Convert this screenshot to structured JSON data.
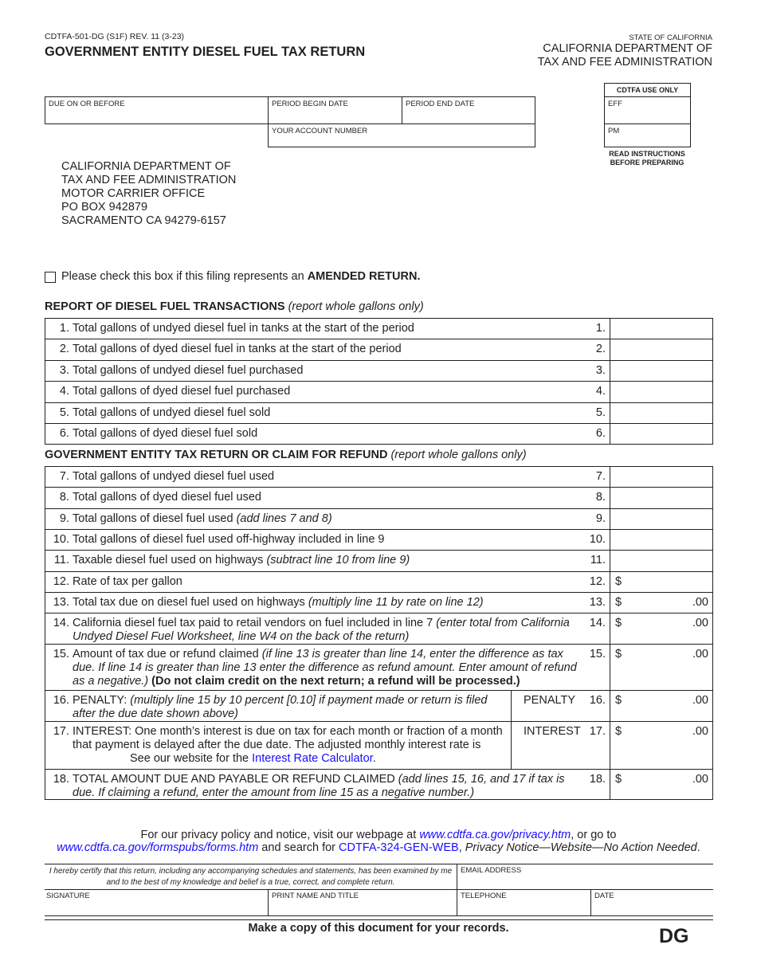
{
  "header": {
    "form_number": "CDTFA-501-DG (S1F) REV. 11 (3-23)",
    "title": "GOVERNMENT ENTITY DIESEL FUEL TAX RETURN",
    "state": "STATE OF CALIFORNIA",
    "dept_line1": "CALIFORNIA DEPARTMENT OF",
    "dept_line2": "TAX AND FEE ADMINISTRATION"
  },
  "fields": {
    "due_on_or_before": "DUE ON OR BEFORE",
    "period_begin": "PERIOD BEGIN DATE",
    "period_end": "PERIOD END DATE",
    "account_number": "YOUR ACCOUNT NUMBER"
  },
  "cdtfa_use": {
    "title": "CDTFA USE ONLY",
    "eff": "EFF",
    "pm": "PM",
    "read1": "READ INSTRUCTIONS",
    "read2": "BEFORE PREPARING"
  },
  "address": [
    "CALIFORNIA DEPARTMENT OF",
    "TAX AND FEE ADMINISTRATION",
    "MOTOR CARRIER OFFICE",
    "PO BOX 942879",
    "SACRAMENTO CA 94279-6157"
  ],
  "amended": {
    "text": "Please check this box if this filing represents an ",
    "bold": "AMENDED RETURN.",
    "checked": false
  },
  "section1": {
    "title": "REPORT OF DIESEL FUEL TRANSACTIONS",
    "note": " (report whole gallons only)"
  },
  "section2": {
    "title": "GOVERNMENT ENTITY TAX RETURN OR CLAIM FOR REFUND",
    "note": " (report whole gallons only)"
  },
  "lines1": [
    {
      "n": "1.",
      "seg": [
        {
          "t": "Total gallons of undyed diesel fuel in tanks at the start of the period"
        }
      ]
    },
    {
      "n": "2.",
      "seg": [
        {
          "t": "Total gallons of dyed diesel fuel in tanks at the start of the period"
        }
      ]
    },
    {
      "n": "3.",
      "seg": [
        {
          "t": "Total gallons of undyed diesel fuel purchased"
        }
      ]
    },
    {
      "n": "4.",
      "seg": [
        {
          "t": "Total gallons of dyed diesel fuel purchased"
        }
      ]
    },
    {
      "n": "5.",
      "seg": [
        {
          "t": "Total gallons of undyed diesel fuel sold"
        }
      ]
    },
    {
      "n": "6.",
      "seg": [
        {
          "t": "Total gallons of dyed diesel fuel sold"
        }
      ]
    }
  ],
  "lines2": [
    {
      "n": "7.",
      "seg": [
        {
          "t": "Total gallons of undyed diesel fuel used"
        }
      ]
    },
    {
      "n": "8.",
      "seg": [
        {
          "t": "Total gallons of dyed diesel fuel used"
        }
      ]
    },
    {
      "n": "9.",
      "seg": [
        {
          "t": "Total gallons of diesel fuel used "
        },
        {
          "t": "(add lines 7 and 8)",
          "s": "i"
        }
      ]
    },
    {
      "n": "10.",
      "seg": [
        {
          "t": "Total gallons of diesel fuel used off-highway included in line 9"
        }
      ]
    },
    {
      "n": "11.",
      "seg": [
        {
          "t": "Taxable diesel fuel used on highways "
        },
        {
          "t": "(subtract line 10 from line 9)",
          "s": "i"
        }
      ]
    },
    {
      "n": "12.",
      "seg": [
        {
          "t": "Rate of tax per gallon"
        }
      ],
      "dollar": "$"
    },
    {
      "n": "13.",
      "seg": [
        {
          "t": "Total tax due on diesel fuel used on highways "
        },
        {
          "t": "(multiply line 11 by rate on line 12)",
          "s": "i"
        }
      ],
      "dollar": "$",
      "cents": ".00"
    },
    {
      "n": "14.",
      "seg": [
        {
          "t": "California diesel fuel tax paid to retail vendors on fuel included in line 7 "
        },
        {
          "t": "(enter total from California Undyed Diesel Fuel Worksheet, line W4 on the back of the return)",
          "s": "i"
        }
      ],
      "dollar": "$",
      "cents": ".00"
    },
    {
      "n": "15.",
      "seg": [
        {
          "t": "Amount of tax due or refund claimed "
        },
        {
          "t": "(if line 13 is greater than line 14, enter the difference as tax due. If line 14 is greater than line 13 enter the difference as refund amount. Enter amount of refund as a negative.)",
          "s": "i"
        },
        {
          "t": " (Do not claim credit on the next return; a refund will be processed.)",
          "s": "b"
        }
      ],
      "dollar": "$",
      "cents": ".00"
    },
    {
      "n": "16.",
      "seg": [
        {
          "t": "PENALTY: "
        },
        {
          "t": "(multiply line 15 by 10 percent [0.10] if payment made or return is filed after the due date shown above)",
          "s": "i"
        }
      ],
      "mid": "PENALTY",
      "dollar": "$",
      "cents": ".00"
    },
    {
      "n": "17.",
      "seg": [
        {
          "t": "INTEREST: One month’s interest is due on tax for each month or fraction of a month that payment is delayed after the due date. The adjusted monthly interest rate is"
        },
        {
          "t": "",
          "s": "gap"
        },
        {
          "t": "See our website for the "
        },
        {
          "t": "Interest Rate Calculator",
          "s": "l"
        },
        {
          "t": "."
        }
      ],
      "mid": "INTEREST",
      "dollar": "$",
      "cents": ".00"
    },
    {
      "n": "18.",
      "seg": [
        {
          "t": "TOTAL AMOUNT DUE AND PAYABLE OR REFUND CLAIMED "
        },
        {
          "t": "(add lines 15, 16, and 17 if tax is due. If claiming a refund, enter the amount from line 15 as a negative number.)",
          "s": "i"
        }
      ],
      "dollar": "$",
      "cents": ".00"
    }
  ],
  "privacy": {
    "p1": "For our privacy policy and notice, visit our webpage at ",
    "link1": "www.cdtfa.ca.gov/privacy.htm",
    "p2": ", or go to",
    "link2": "www.cdtfa.ca.gov/formspubs/forms.htm",
    "p3": " and search for ",
    "link3": "CDTFA-324-GEN-WEB",
    "p4": ", ",
    "p5": "Privacy Notice—Website—No Action Needed",
    "p6": "."
  },
  "certification": {
    "statement": "I hereby certify that this return, including any accompanying schedules and statements, has been examined by me and to the best of my knowledge and belief is a true, correct, and complete return.",
    "email": "EMAIL ADDRESS",
    "signature": "SIGNATURE",
    "print_name": "PRINT NAME AND TITLE",
    "telephone": "TELEPHONE",
    "date": "DATE"
  },
  "footer": {
    "copy_note": "Make a copy of this document for your records.",
    "code": "DG"
  },
  "colors": {
    "link": "#1a0dff",
    "text": "#231f20"
  }
}
